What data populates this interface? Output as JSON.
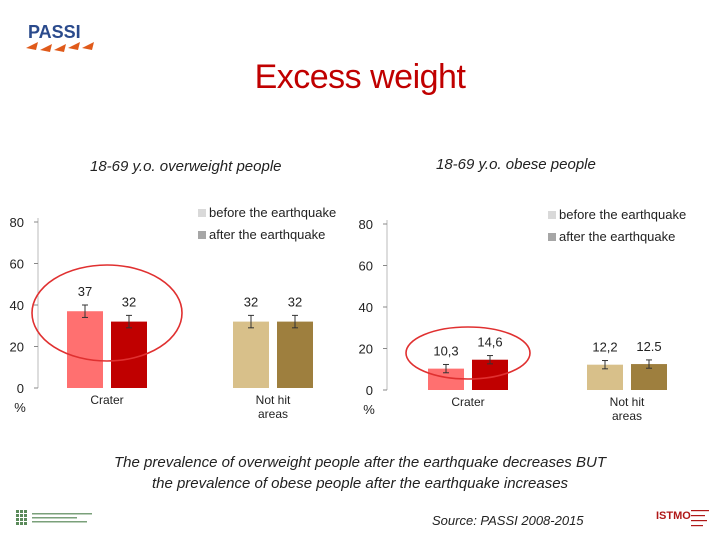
{
  "header": {
    "logo_text": "PASSI",
    "title": "Excess weight"
  },
  "charts": {
    "left_subtitle": "18-69 y.o. overweight people",
    "right_subtitle": "18-69 y.o. obese people"
  },
  "chart_data": [
    {
      "type": "bar",
      "title": "18-69 y.o. overweight people",
      "categories": [
        "Crater",
        "Not hit areas"
      ],
      "series": [
        {
          "name": "before the earthquake",
          "values": [
            37,
            32
          ],
          "labels": [
            "37",
            "32"
          ]
        },
        {
          "name": "after the earthquake",
          "values": [
            32,
            32
          ],
          "labels": [
            "32",
            "32"
          ]
        }
      ],
      "error_bars": [
        [
          3,
          3
        ],
        [
          3,
          3
        ]
      ],
      "ylim": [
        0,
        80
      ],
      "yticks": [
        "0",
        "20",
        "40",
        "60",
        "80"
      ],
      "yunit": "%",
      "legend": "top-right",
      "colors": {
        "before_highlight": "#ff7070",
        "after_highlight": "#c00000",
        "before": "#d8c08a",
        "after": "#9e7f3e"
      },
      "highlight_category": "Crater"
    },
    {
      "type": "bar",
      "title": "18-69 y.o. obese people",
      "categories": [
        "Crater",
        "Not hit areas"
      ],
      "series": [
        {
          "name": "before the earthquake",
          "values": [
            10.3,
            12.2
          ],
          "labels": [
            "10,3",
            "12,2"
          ]
        },
        {
          "name": "after the earthquake",
          "values": [
            14.6,
            12.5
          ],
          "labels": [
            "14,6",
            "12.5"
          ]
        }
      ],
      "error_bars": [
        [
          2,
          2
        ],
        [
          2,
          2
        ]
      ],
      "ylim": [
        0,
        80
      ],
      "yticks": [
        "0",
        "20",
        "40",
        "60",
        "80"
      ],
      "yunit": "%",
      "legend": "top-right",
      "colors": {
        "before_highlight": "#ff7070",
        "after_highlight": "#c00000",
        "before": "#d8c08a",
        "after": "#9e7f3e"
      },
      "highlight_category": "Crater"
    }
  ],
  "caption": {
    "line1": "The prevalence of overweight people after the earthquake decreases BUT",
    "line2": "the prevalence of obese people after the earthquake increases"
  },
  "source": "Source: PASSI 2008-2015",
  "footer": {
    "logo_right_text": "ISTMO"
  }
}
